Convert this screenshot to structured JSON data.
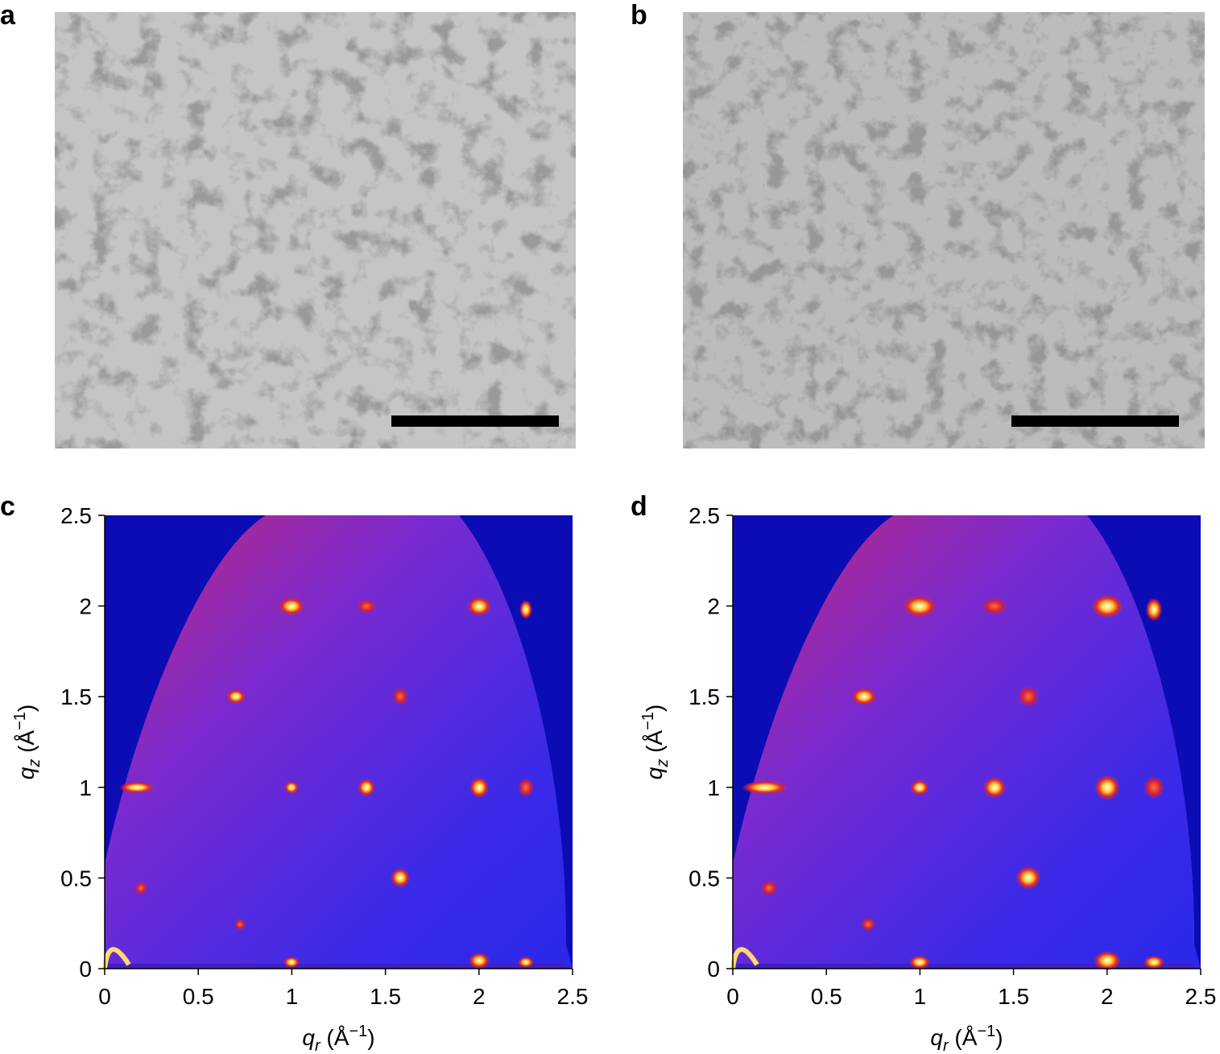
{
  "panels": [
    {
      "label": "a"
    },
    {
      "label": "b"
    }
  ],
  "chart_data": [
    {
      "type": "heatmap",
      "label": "c",
      "xlabel_parts": [
        "q",
        "r",
        " (Å",
        "−1",
        ")"
      ],
      "ylabel_parts": [
        "q",
        "z",
        " (Å",
        "−1",
        ")"
      ],
      "xlim": [
        0,
        2.5
      ],
      "ylim": [
        0,
        2.5
      ],
      "xticks": [
        0,
        0.5,
        1,
        1.5,
        2,
        2.5
      ],
      "yticks": [
        0,
        0.5,
        1,
        1.5,
        2,
        2.5
      ]
    },
    {
      "type": "heatmap",
      "label": "d",
      "xlabel_parts": [
        "q",
        "r",
        " (Å",
        "−1",
        ")"
      ],
      "ylabel_parts": [
        "q",
        "z",
        " (Å",
        "−1",
        ")"
      ],
      "xlim": [
        0,
        2.5
      ],
      "ylim": [
        0,
        2.5
      ],
      "xticks": [
        0,
        0.5,
        1,
        1.5,
        2,
        2.5
      ],
      "yticks": [
        0,
        0.5,
        1,
        1.5,
        2,
        2.5
      ]
    }
  ]
}
